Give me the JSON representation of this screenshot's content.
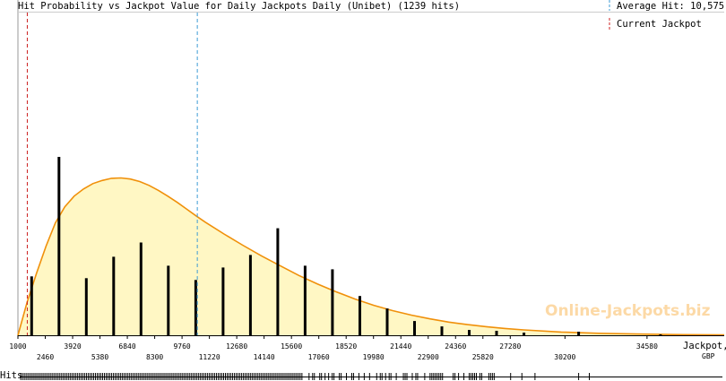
{
  "header": {
    "title": "Hit Probability vs Jackpot Value for Daily Jackpots Daily (Unibet) (1239 hits)",
    "legend_average": "Average Hit: 10,575",
    "legend_current": "Current Jackpot",
    "watermark": "Online-Jackpots.biz",
    "hits_label": "Hits",
    "x_axis_label": "Jackpot,",
    "x_axis_unit": "GBP"
  },
  "colors": {
    "curve": "#f0900a",
    "fill": "#fff7c4",
    "average_line": "#3c9bd4",
    "current_line": "#cc2020",
    "bars": "#000000"
  },
  "chart_data": {
    "type": "bar",
    "title": "Hit Probability vs Jackpot Value for Daily Jackpots Daily (Unibet) (1239 hits)",
    "xlabel": "Jackpot, GBP",
    "xlim": [
      1000,
      38700
    ],
    "ylim": [
      0,
      1
    ],
    "x_ticks_upper": [
      1000,
      3920,
      6840,
      9760,
      12680,
      15600,
      18520,
      21440,
      24360,
      27280,
      34580
    ],
    "x_ticks_lower": [
      2460,
      5380,
      8300,
      11220,
      14140,
      17060,
      19980,
      22900,
      25820,
      30200
    ],
    "average_hit": 10575,
    "current_jackpot": 1500,
    "bars": [
      {
        "x": 1730,
        "value": 0.33
      },
      {
        "x": 3190,
        "value": 1.0
      },
      {
        "x": 4650,
        "value": 0.32
      },
      {
        "x": 6110,
        "value": 0.44
      },
      {
        "x": 7570,
        "value": 0.52
      },
      {
        "x": 9030,
        "value": 0.39
      },
      {
        "x": 10490,
        "value": 0.31
      },
      {
        "x": 11950,
        "value": 0.38
      },
      {
        "x": 13410,
        "value": 0.45
      },
      {
        "x": 14870,
        "value": 0.6
      },
      {
        "x": 16330,
        "value": 0.39
      },
      {
        "x": 17790,
        "value": 0.37
      },
      {
        "x": 19250,
        "value": 0.22
      },
      {
        "x": 20710,
        "value": 0.15
      },
      {
        "x": 22170,
        "value": 0.08
      },
      {
        "x": 23630,
        "value": 0.05
      },
      {
        "x": 25090,
        "value": 0.03
      },
      {
        "x": 26550,
        "value": 0.025
      },
      {
        "x": 28010,
        "value": 0.015
      },
      {
        "x": 30930,
        "value": 0.02
      },
      {
        "x": 35300,
        "value": 0.005
      }
    ],
    "curve": [
      [
        1000,
        0
      ],
      [
        1500,
        0.19
      ],
      [
        2000,
        0.35
      ],
      [
        2500,
        0.5
      ],
      [
        3000,
        0.63
      ],
      [
        3500,
        0.72
      ],
      [
        4000,
        0.78
      ],
      [
        4500,
        0.82
      ],
      [
        5000,
        0.85
      ],
      [
        5500,
        0.868
      ],
      [
        6000,
        0.88
      ],
      [
        6500,
        0.882
      ],
      [
        7000,
        0.876
      ],
      [
        7500,
        0.862
      ],
      [
        8000,
        0.84
      ],
      [
        8500,
        0.812
      ],
      [
        9000,
        0.78
      ],
      [
        9500,
        0.745
      ],
      [
        10000,
        0.708
      ],
      [
        10500,
        0.67
      ],
      [
        11000,
        0.634
      ],
      [
        12000,
        0.568
      ],
      [
        13000,
        0.505
      ],
      [
        14000,
        0.445
      ],
      [
        15000,
        0.39
      ],
      [
        16000,
        0.335
      ],
      [
        17000,
        0.287
      ],
      [
        18000,
        0.243
      ],
      [
        19000,
        0.203
      ],
      [
        20000,
        0.168
      ],
      [
        21000,
        0.138
      ],
      [
        22000,
        0.113
      ],
      [
        23000,
        0.092
      ],
      [
        24000,
        0.074
      ],
      [
        25000,
        0.06
      ],
      [
        26000,
        0.048
      ],
      [
        27000,
        0.038
      ],
      [
        28000,
        0.03
      ],
      [
        30000,
        0.018
      ],
      [
        32000,
        0.011
      ],
      [
        34000,
        0.007
      ],
      [
        36000,
        0.004
      ],
      [
        38700,
        0.002
      ]
    ]
  }
}
